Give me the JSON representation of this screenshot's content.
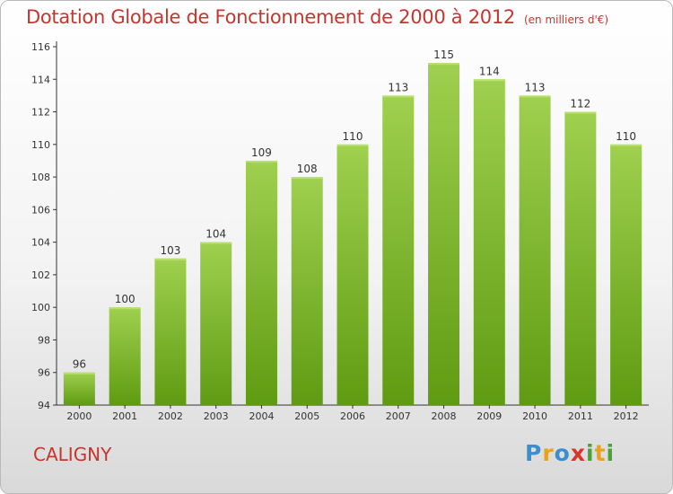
{
  "header": {
    "title": "Dotation Globale de Fonctionnement de 2000 à 2012",
    "subtitle": "(en milliers d'€)"
  },
  "footer": {
    "town": "CALIGNY",
    "logo_letters": [
      "P",
      "r",
      "o",
      "x",
      "i",
      "t",
      "i"
    ]
  },
  "colors": {
    "title": "#c8342e",
    "bar_top": "#9fd04f",
    "bar_bottom": "#5f9b12",
    "logo": [
      "#3a8fd0",
      "#e8a21c",
      "#3a8fd0",
      "#d9352b",
      "#4aa334",
      "#e8a21c",
      "#4aa334"
    ]
  },
  "chart_data": {
    "type": "bar",
    "categories": [
      "2000",
      "2001",
      "2002",
      "2003",
      "2004",
      "2005",
      "2006",
      "2007",
      "2008",
      "2009",
      "2010",
      "2011",
      "2012"
    ],
    "values": [
      96,
      100,
      103,
      104,
      109,
      108,
      110,
      113,
      115,
      114,
      113,
      112,
      110
    ],
    "ylim": [
      94,
      116
    ],
    "yticks": [
      "94",
      "96",
      "98",
      "100",
      "102",
      "104",
      "106",
      "108",
      "110",
      "112",
      "114",
      "116"
    ],
    "title": "Dotation Globale de Fonctionnement de 2000 à 2012",
    "grid": false
  }
}
